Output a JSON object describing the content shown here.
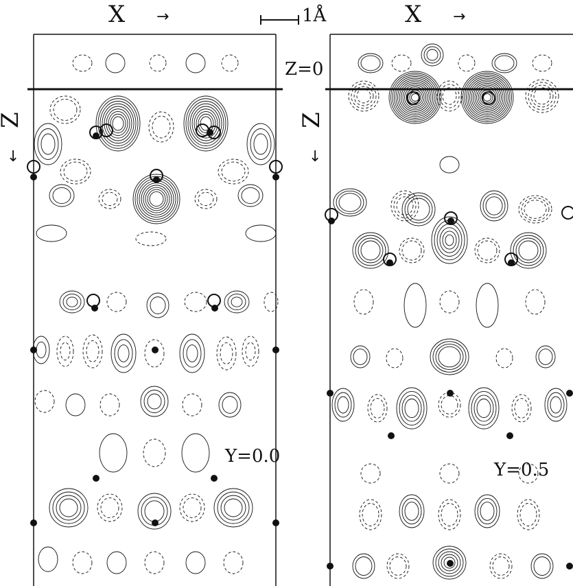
{
  "header": {
    "left_axis_label": "X",
    "right_axis_label": "X",
    "arrow_right": "→",
    "scale_bar_label": "1Å"
  },
  "left_panel": {
    "z_label": "Z",
    "z_arrow": "↓",
    "y_label": "Y=0.0"
  },
  "right_panel": {
    "z_label": "Z",
    "z_arrow": "↓",
    "surface_label": "Z=0",
    "y_label": "Y=0.5"
  },
  "colors": {
    "ink": "#111111",
    "background": "#ffffff"
  }
}
